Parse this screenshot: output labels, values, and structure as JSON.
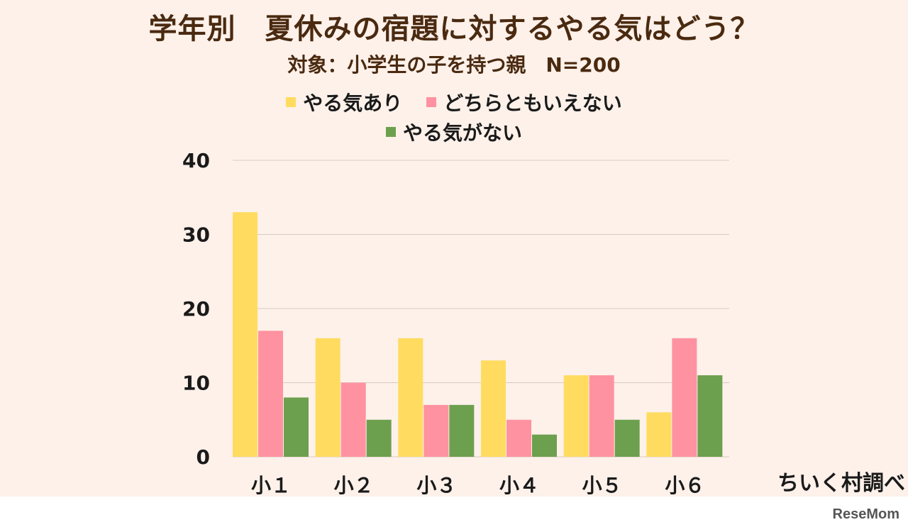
{
  "title": "学年別　夏休みの宿題に対するやる気はどう？",
  "subtitle": "対象：小学生の子を持つ親　N=200",
  "source": "ちいく村調べ",
  "brand": "ReseMom",
  "chart_data": {
    "type": "bar",
    "categories": [
      "小１",
      "小２",
      "小３",
      "小４",
      "小５",
      "小６"
    ],
    "series": [
      {
        "name": "やる気あり",
        "color": "#ffdc60",
        "values": [
          33,
          16,
          16,
          13,
          11,
          6
        ]
      },
      {
        "name": "どちらともいえない",
        "color": "#ff92a0",
        "values": [
          17,
          10,
          7,
          5,
          11,
          16
        ]
      },
      {
        "name": "やる気がない",
        "color": "#6da04e",
        "values": [
          8,
          5,
          7,
          3,
          5,
          11
        ]
      }
    ],
    "ylim": [
      0,
      40
    ],
    "yticks": [
      0,
      10,
      20,
      30,
      40
    ],
    "grid": true,
    "legend_position": "top-center"
  }
}
